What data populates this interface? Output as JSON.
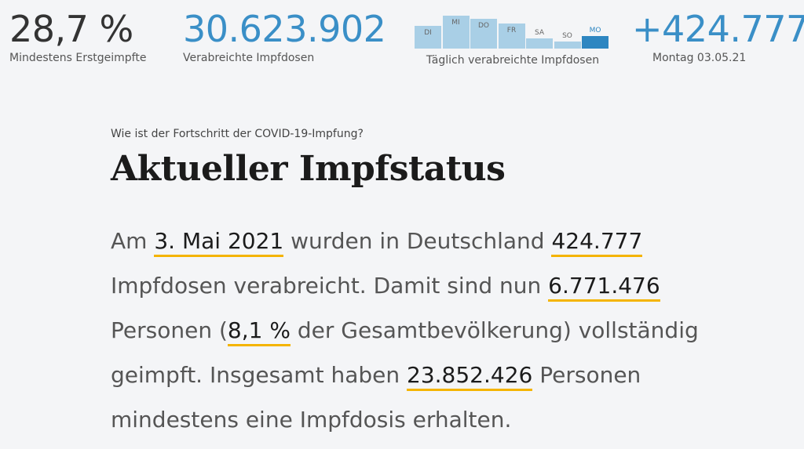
{
  "stats": {
    "first_dose": {
      "value": "28,7 %",
      "label": "Mindestens Erstgeimpfte"
    },
    "doses": {
      "value": "30.623.902",
      "label": "Verabreichte Impfdosen"
    },
    "daily": {
      "value": "+424.777",
      "label": "Montag 03.05.21"
    }
  },
  "daily_chart": {
    "caption": "Täglich verabreichte Impfdosen",
    "colors": {
      "normal": "#a9cfe6",
      "highlight": "#2e86c1"
    }
  },
  "chart_data": {
    "type": "bar",
    "categories": [
      "DI",
      "MI",
      "DO",
      "FR",
      "SA",
      "SO",
      "MO"
    ],
    "values": [
      0.68,
      1.0,
      0.9,
      0.76,
      0.31,
      0.22,
      0.38
    ],
    "highlight_index": 6
  },
  "article": {
    "kicker": "Wie ist der Fortschritt der COVID-19-Impfung?",
    "title": "Aktueller Impfstatus",
    "t1": "Am ",
    "v1": "3. Mai 2021",
    "t2": " wurden in Deutschland ",
    "v2": "424.777",
    "t3": " Impfdosen verabreicht. Damit sind nun ",
    "v3": "6.771.476",
    "t4": " Personen (",
    "v4": "8,1 %",
    "t5": " der Gesamtbevölkerung) vollständig geimpft. Insgesamt haben ",
    "v5": "23.852.426",
    "t6": " Personen mindestens eine Impfdosis erhalten."
  }
}
